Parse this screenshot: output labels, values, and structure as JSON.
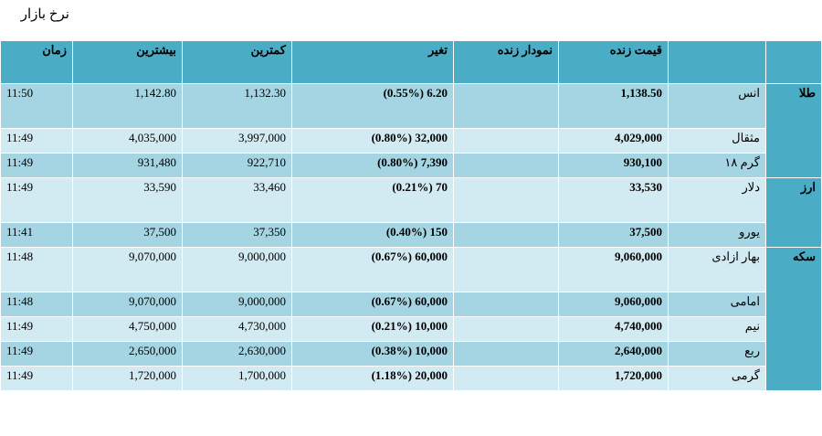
{
  "title": "نرخ بازار",
  "headers": {
    "time": "زمان",
    "max": "بیشترین",
    "min": "کمترین",
    "change": "تغیر",
    "chart": "نمودار زنده",
    "price": "قیمت زنده"
  },
  "groups": [
    {
      "label": "طلا",
      "rows": [
        {
          "name": "انس",
          "price": "1,138.50",
          "change": "(0.55%) 6.20",
          "min": "1,132.30",
          "max": "1,142.80",
          "time": "11:50",
          "tall": true
        },
        {
          "name": "مثقال",
          "price": "4,029,000",
          "change": "(0.80%) 32,000",
          "min": "3,997,000",
          "max": "4,035,000",
          "time": "11:49",
          "tall": false
        },
        {
          "name": "گرم ۱۸",
          "price": "930,100",
          "change": "(0.80%) 7,390",
          "min": "922,710",
          "max": "931,480",
          "time": "11:49",
          "tall": false
        }
      ]
    },
    {
      "label": "ارز",
      "rows": [
        {
          "name": "دلار",
          "price": "33,530",
          "change": "(0.21%) 70",
          "min": "33,460",
          "max": "33,590",
          "time": "11:49",
          "tall": true
        },
        {
          "name": "یورو",
          "price": "37,500",
          "change": "(0.40%) 150",
          "min": "37,350",
          "max": "37,500",
          "time": "11:41",
          "tall": false
        }
      ]
    },
    {
      "label": "سکه",
      "rows": [
        {
          "name": "بهار ازادی",
          "price": "9,060,000",
          "change": "(0.67%) 60,000",
          "min": "9,000,000",
          "max": "9,070,000",
          "time": "11:48",
          "tall": true
        },
        {
          "name": "امامی",
          "price": "9,060,000",
          "change": "(0.67%) 60,000",
          "min": "9,000,000",
          "max": "9,070,000",
          "time": "11:48",
          "tall": false
        },
        {
          "name": "نیم",
          "price": "4,740,000",
          "change": "(0.21%) 10,000",
          "min": "4,730,000",
          "max": "4,750,000",
          "time": "11:49",
          "tall": false
        },
        {
          "name": "ربع",
          "price": "2,640,000",
          "change": "(0.38%) 10,000",
          "min": "2,630,000",
          "max": "2,650,000",
          "time": "11:49",
          "tall": false
        },
        {
          "name": "گرمی",
          "price": "1,720,000",
          "change": "(1.18%) 20,000",
          "min": "1,700,000",
          "max": "1,720,000",
          "time": "11:49",
          "tall": false
        }
      ]
    }
  ]
}
